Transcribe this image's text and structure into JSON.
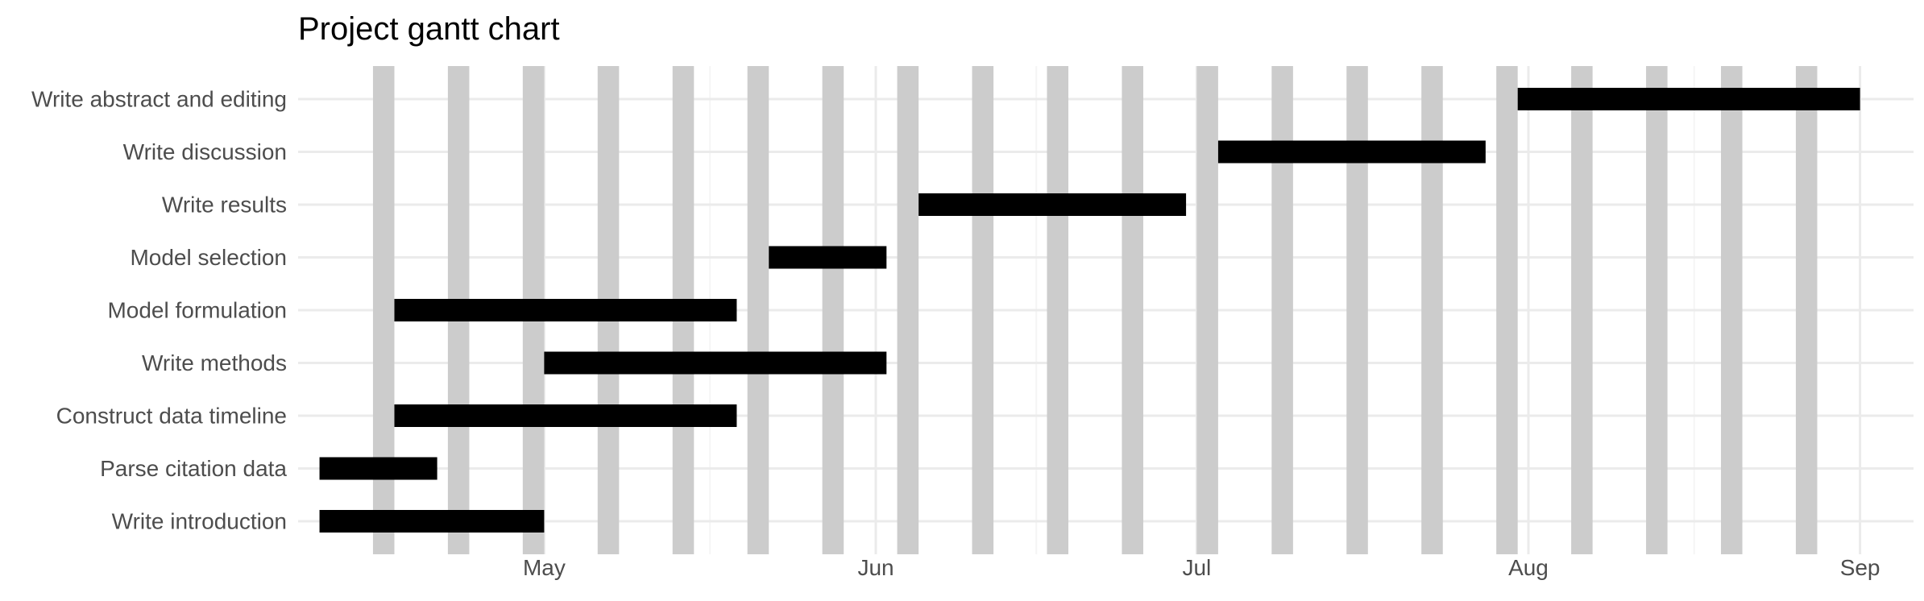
{
  "chart_data": {
    "type": "gantt",
    "title": "Project gantt chart",
    "xlabel": "",
    "ylabel": "",
    "x_axis_type": "date",
    "x_range": [
      "2023-04-08",
      "2023-09-06"
    ],
    "grid": true,
    "x_ticks": [
      {
        "date": "2023-05-01",
        "label": "May"
      },
      {
        "date": "2023-06-01",
        "label": "Jun"
      },
      {
        "date": "2023-07-01",
        "label": "Jul"
      },
      {
        "date": "2023-08-01",
        "label": "Aug"
      },
      {
        "date": "2023-09-01",
        "label": "Sep"
      }
    ],
    "weekend_bands": [
      "2023-04-15",
      "2023-04-22",
      "2023-04-29",
      "2023-05-06",
      "2023-05-13",
      "2023-05-20",
      "2023-05-27",
      "2023-06-03",
      "2023-06-10",
      "2023-06-17",
      "2023-06-24",
      "2023-07-01",
      "2023-07-08",
      "2023-07-15",
      "2023-07-22",
      "2023-07-29",
      "2023-08-05",
      "2023-08-12",
      "2023-08-19",
      "2023-08-26"
    ],
    "tasks": [
      {
        "name": "Write introduction",
        "start": "2023-04-10",
        "end": "2023-05-01"
      },
      {
        "name": "Parse citation data",
        "start": "2023-04-10",
        "end": "2023-04-21"
      },
      {
        "name": "Construct data timeline",
        "start": "2023-04-17",
        "end": "2023-05-19"
      },
      {
        "name": "Write methods",
        "start": "2023-05-01",
        "end": "2023-06-02"
      },
      {
        "name": "Model formulation",
        "start": "2023-04-17",
        "end": "2023-05-19"
      },
      {
        "name": "Model selection",
        "start": "2023-05-22",
        "end": "2023-06-02"
      },
      {
        "name": "Write results",
        "start": "2023-06-05",
        "end": "2023-06-30"
      },
      {
        "name": "Write discussion",
        "start": "2023-07-03",
        "end": "2023-07-28"
      },
      {
        "name": "Write abstract and editing",
        "start": "2023-07-31",
        "end": "2023-09-01"
      }
    ],
    "colors": {
      "bar": "#000000",
      "weekend_band": "#cccccc",
      "grid_major": "#ebebeb",
      "grid_minor": "#f5f5f5",
      "axis_text": "#4d4d4d"
    }
  }
}
